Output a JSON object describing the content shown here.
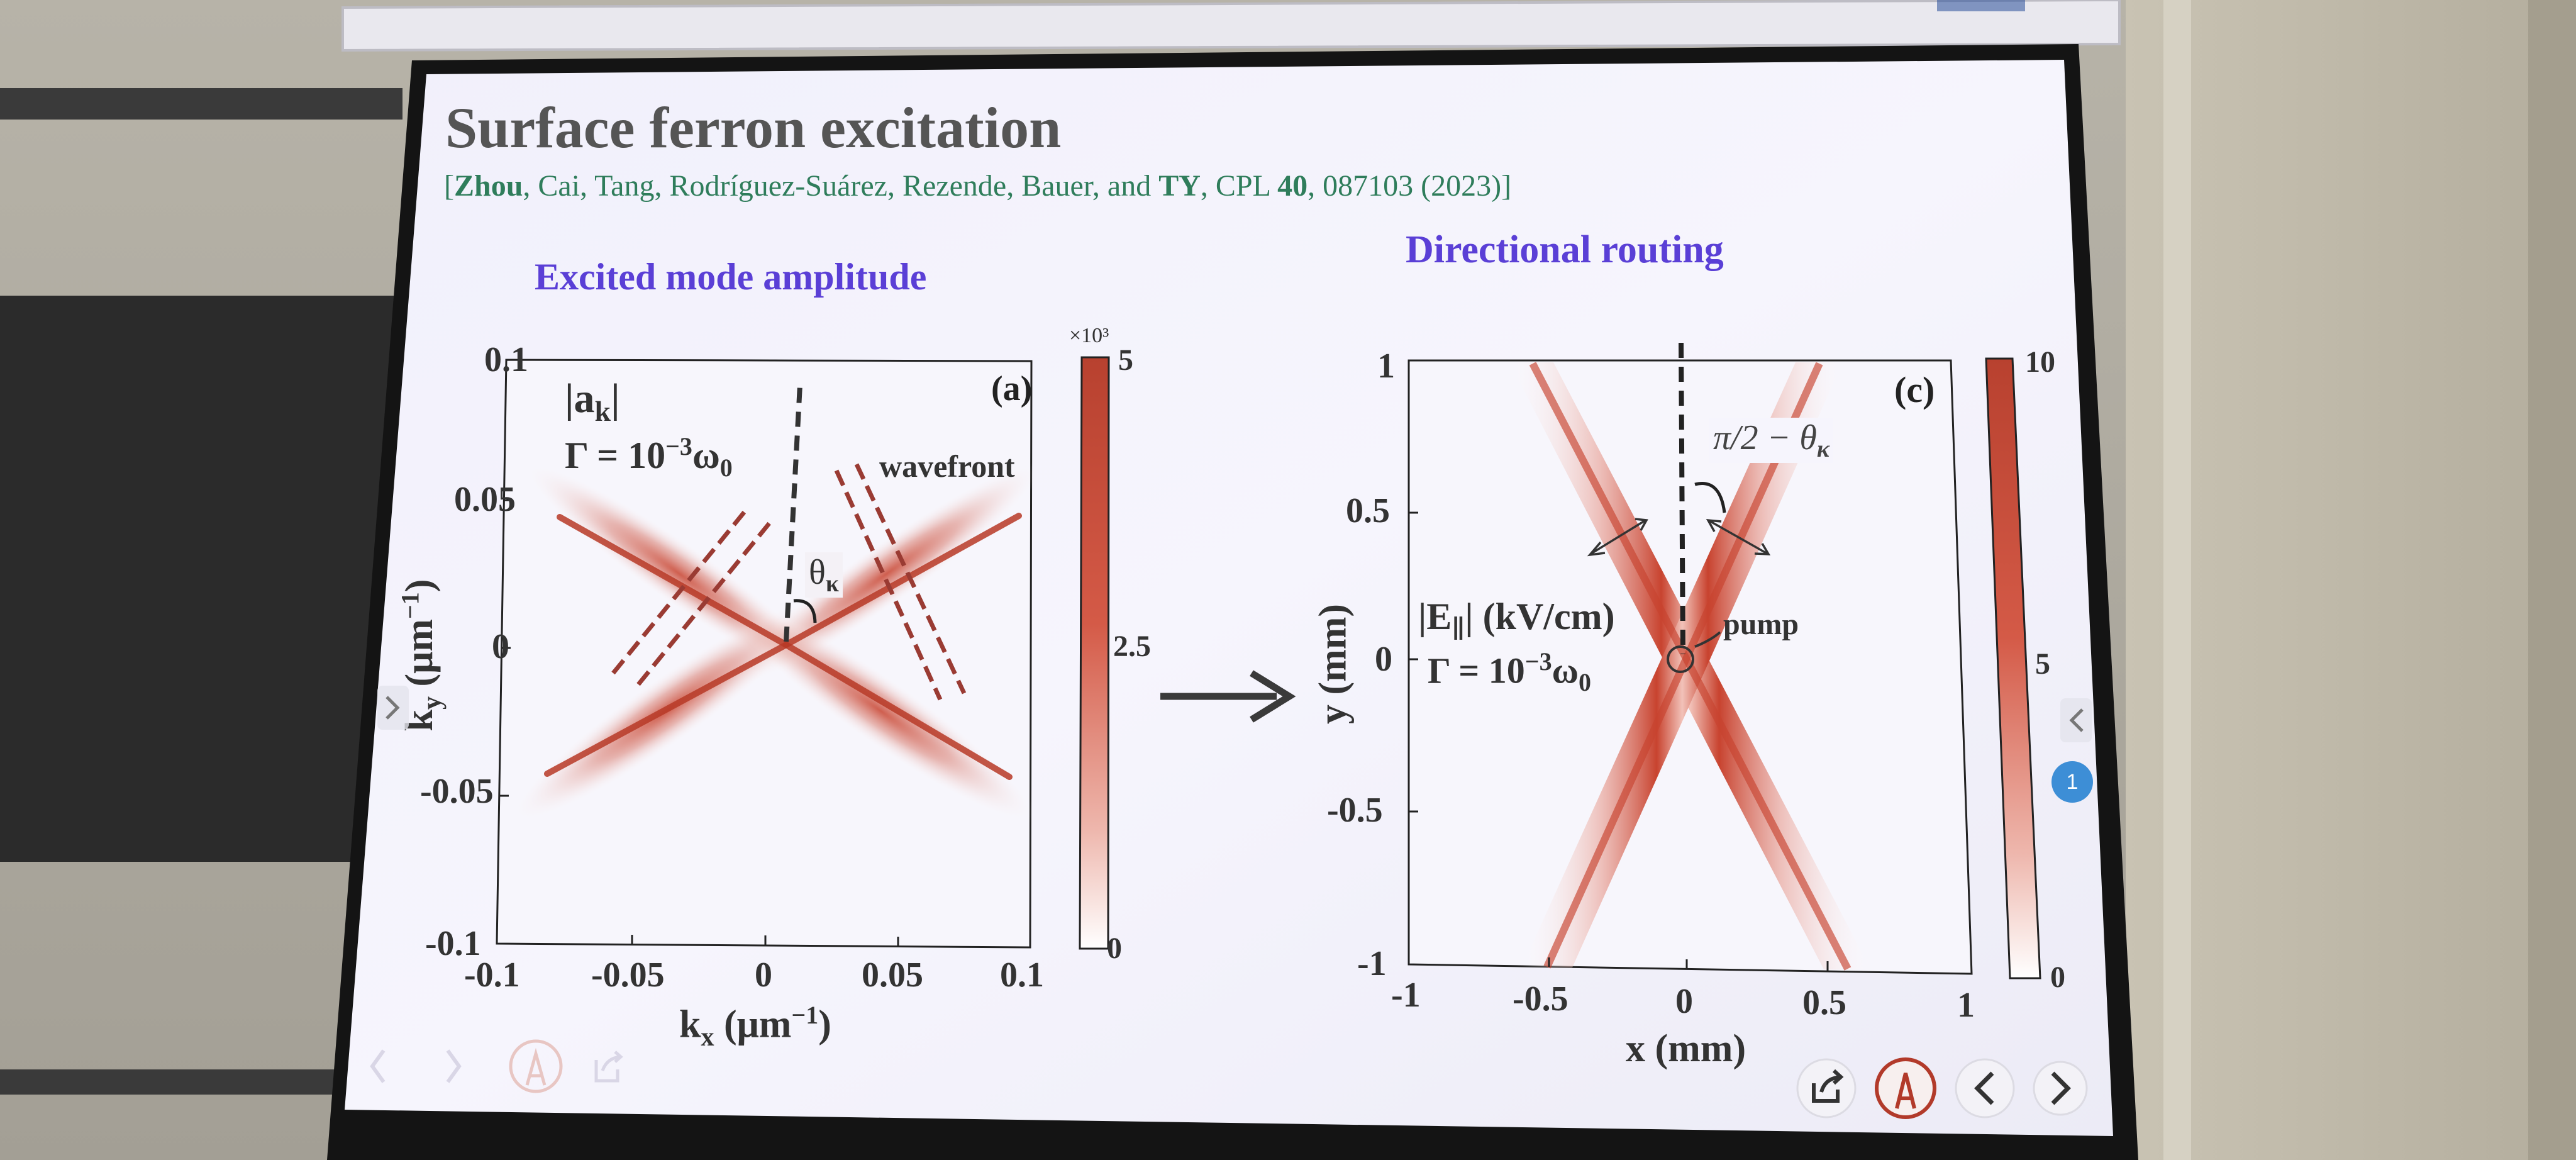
{
  "slide": {
    "title": "Surface ferron excitation",
    "citation": {
      "open": "[",
      "authors": [
        {
          "name": "Zhou",
          "bold": true
        },
        {
          "name": ", Cai, Tang, Rodríguez-Suárez, Rezende, Bauer, and ",
          "bold": false
        },
        {
          "name": "TY",
          "bold": true
        },
        {
          "name": ", CPL ",
          "bold": false
        },
        {
          "name": "40",
          "bold": true
        },
        {
          "name": ", 087103 (2023)]",
          "bold": false
        }
      ]
    },
    "left_heading": "Excited mode amplitude",
    "right_heading": "Directional routing",
    "colors": {
      "title": "#555555",
      "heading": "#5a3fd6",
      "citation": "#2f7d5b",
      "heat": "#c8432f"
    }
  },
  "panel_a": {
    "label": "(a)",
    "quantity": "|a",
    "quantity_sub": "k",
    "quantity_close": "|",
    "gamma_lhs": "Γ = 10",
    "gamma_exp": "−3",
    "gamma_unit": "ω",
    "gamma_unit_sub": "0",
    "wavefront_label": "wavefront",
    "angle_label": "θ",
    "angle_sub": "κ",
    "xlabel_main": "k",
    "xlabel_sub": "x",
    "xlabel_unit": " (μm",
    "xlabel_exp": "−1",
    "xlabel_close": ")",
    "ylabel_main": "k",
    "ylabel_sub": "y",
    "ylabel_unit": " (μm",
    "ylabel_exp": "−1",
    "ylabel_close": ")",
    "xticks": [
      "-0.1",
      "-0.05",
      "0",
      "0.05",
      "0.1"
    ],
    "yticks": [
      "0.1",
      "0.05",
      "0",
      "-0.05",
      "-0.1"
    ],
    "colorbar_ticks": [
      "5",
      "2.5",
      "0"
    ],
    "colorbar_scale": "×10³"
  },
  "panel_c": {
    "label": "(c)",
    "quantity": "|E",
    "quantity_sub": "∥",
    "quantity_unit": "| (kV/cm)",
    "gamma_lhs": "Γ = 10",
    "gamma_exp": "−3",
    "gamma_unit": "ω",
    "gamma_unit_sub": "0",
    "pump_label": "pump",
    "angle_label": "π/2 − θ",
    "angle_sub": "κ",
    "xlabel": "x (mm)",
    "ylabel": "y (mm)",
    "xticks": [
      "-1",
      "-0.5",
      "0",
      "0.5",
      "1"
    ],
    "yticks": [
      "1",
      "0.5",
      "0",
      "-0.5",
      "-1"
    ],
    "colorbar_ticks": [
      "10",
      "5",
      "0"
    ]
  },
  "controls": {
    "left": [
      "prev-icon",
      "next-icon",
      "pen-icon",
      "share-icon"
    ],
    "right": [
      "share-icon",
      "pen-icon",
      "prev-icon",
      "next-icon"
    ],
    "page_badge": "1"
  }
}
